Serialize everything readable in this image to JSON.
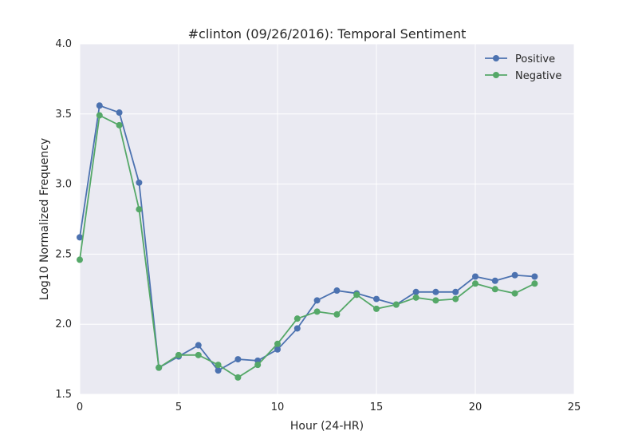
{
  "chart_data": {
    "type": "line",
    "title": "#clinton (09/26/2016): Temporal Sentiment",
    "xlabel": "Hour (24-HR)",
    "ylabel": "Log10 Normalized Frequency",
    "xlim": [
      0,
      25
    ],
    "ylim": [
      1.5,
      4.0
    ],
    "xticks": [
      0,
      5,
      10,
      15,
      20,
      25
    ],
    "yticks": [
      1.5,
      2.0,
      2.5,
      3.0,
      3.5,
      4.0
    ],
    "xtick_labels": [
      "0",
      "5",
      "10",
      "15",
      "20",
      "25"
    ],
    "ytick_labels": [
      "1.5",
      "2.0",
      "2.5",
      "3.0",
      "3.5",
      "4.0"
    ],
    "grid": true,
    "legend_position": "top-right",
    "x": [
      0,
      1,
      2,
      3,
      4,
      5,
      6,
      7,
      8,
      9,
      10,
      11,
      12,
      13,
      14,
      15,
      16,
      17,
      18,
      19,
      20,
      21,
      22,
      23
    ],
    "series": [
      {
        "name": "Positive",
        "color": "#4c72b0",
        "values": [
          2.62,
          3.56,
          3.51,
          3.01,
          1.69,
          1.77,
          1.85,
          1.67,
          1.75,
          1.74,
          1.82,
          1.97,
          2.17,
          2.24,
          2.22,
          2.18,
          2.14,
          2.23,
          2.23,
          2.23,
          2.34,
          2.31,
          2.35,
          2.34
        ]
      },
      {
        "name": "Negative",
        "color": "#55a868",
        "values": [
          2.46,
          3.49,
          3.42,
          2.82,
          1.69,
          1.78,
          1.78,
          1.71,
          1.62,
          1.71,
          1.86,
          2.04,
          2.09,
          2.07,
          2.21,
          2.11,
          2.14,
          2.19,
          2.17,
          2.18,
          2.29,
          2.25,
          2.22,
          2.29
        ]
      }
    ],
    "colors": {
      "plot_background": "#eaeaf2",
      "grid": "#ffffff"
    }
  }
}
